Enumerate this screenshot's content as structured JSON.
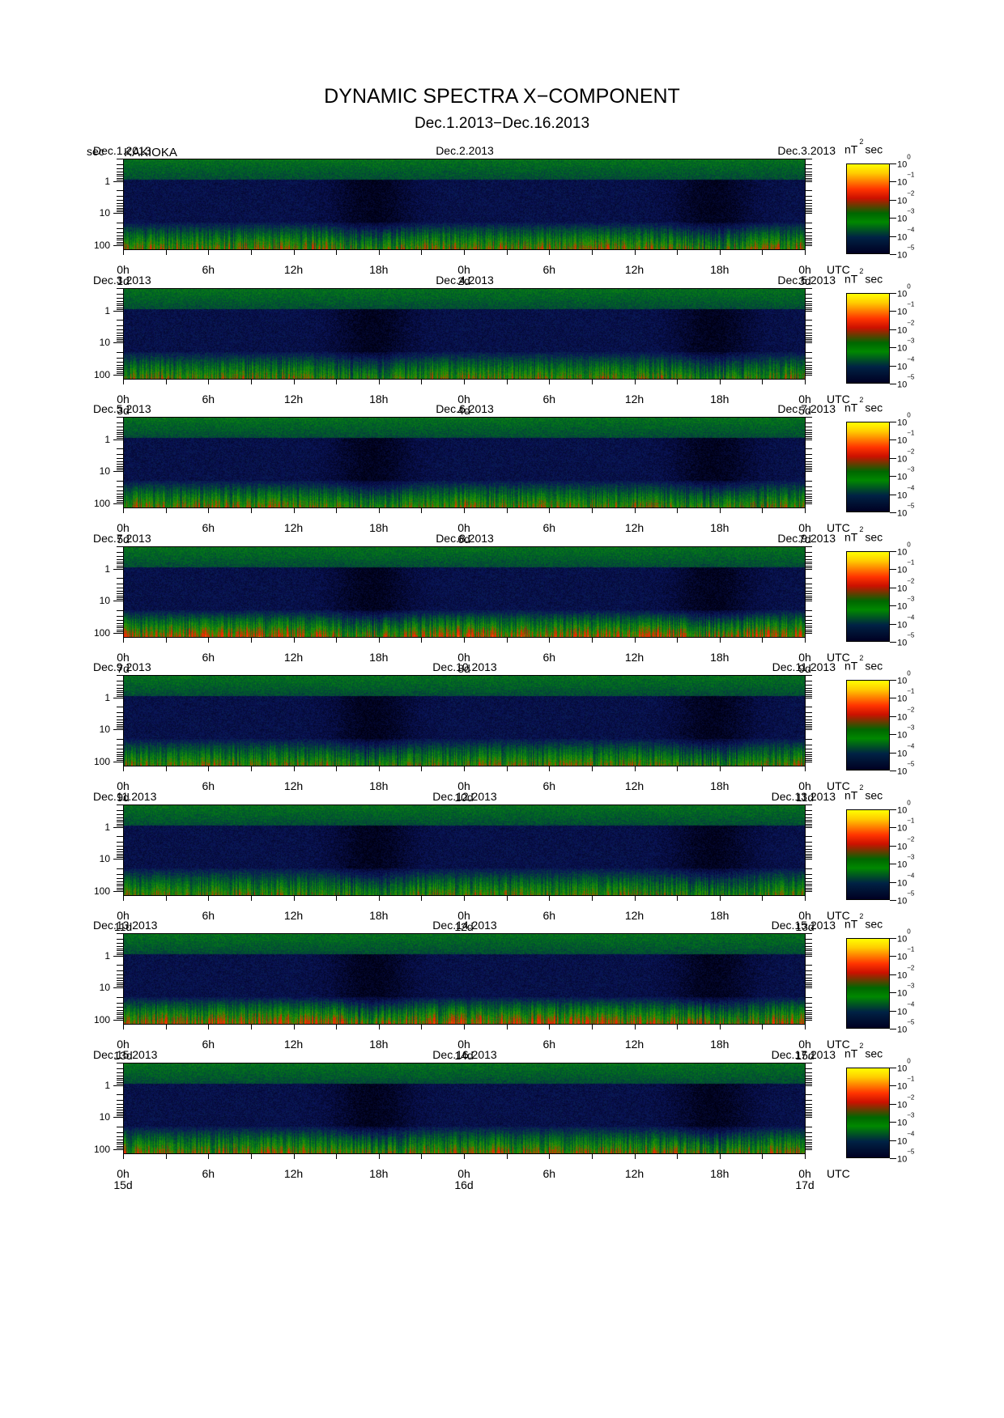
{
  "title": "DYNAMIC SPECTRA X−COMPONENT",
  "subtitle": "Dec.1.2013−Dec.16.2013",
  "y_unit": "sec",
  "station": "KAKIOKA",
  "scale_unit_prefix": "nT",
  "scale_unit_exp": "2",
  "scale_unit_suffix": "sec",
  "utc_label": "UTC",
  "colors": {
    "high": "#ffff00",
    "mid": "#ff2200",
    "low": "#008800",
    "floor": "#000022"
  },
  "chart_data": {
    "type": "heatmap",
    "xlabel": "UTC",
    "ylabel": "sec",
    "y_scale": "log",
    "y_ticks": [
      "1",
      "10",
      "100"
    ],
    "x_ticks": [
      "0h",
      "6h",
      "12h",
      "18h",
      "0h",
      "6h",
      "12h",
      "18h",
      "0h"
    ],
    "colorbar": {
      "label": "nT²sec",
      "scale": "log",
      "ticks": [
        "10^0",
        "10^-1",
        "10^-2",
        "10^-3",
        "10^-4",
        "10^-5"
      ]
    },
    "panels": [
      {
        "start_date": "Dec.1.2013",
        "mid_date": "Dec.2.2013",
        "end_date": "Dec.3.2013",
        "days": [
          "1d",
          "2d",
          "3d"
        ],
        "activity": 0.45
      },
      {
        "start_date": "Dec.3.2013",
        "mid_date": "Dec.4.2013",
        "end_date": "Dec.5.2013",
        "days": [
          "3d",
          "4d",
          "5d"
        ],
        "activity": 0.35
      },
      {
        "start_date": "Dec.5.2013",
        "mid_date": "Dec.6.2013",
        "end_date": "Dec.7.2013",
        "days": [
          "5d",
          "6d",
          "7d"
        ],
        "activity": 0.4
      },
      {
        "start_date": "Dec.7.2013",
        "mid_date": "Dec.8.2013",
        "end_date": "Dec.9.2013",
        "days": [
          "7d",
          "8d",
          "9d"
        ],
        "activity": 0.7
      },
      {
        "start_date": "Dec.9.2013",
        "mid_date": "Dec.10.2013",
        "end_date": "Dec.11.2013",
        "days": [
          "9d",
          "10d",
          "11d"
        ],
        "activity": 0.35
      },
      {
        "start_date": "Dec.11.2013",
        "mid_date": "Dec.12.2013",
        "end_date": "Dec.13.2013",
        "days": [
          "11d",
          "12d",
          "13d"
        ],
        "activity": 0.3
      },
      {
        "start_date": "Dec.13.2013",
        "mid_date": "Dec.14.2013",
        "end_date": "Dec.15.2013",
        "days": [
          "13d",
          "14d",
          "15d"
        ],
        "activity": 0.65
      },
      {
        "start_date": "Dec.15.2013",
        "mid_date": "Dec.16.2013",
        "end_date": "Dec.17.2013",
        "days": [
          "15d",
          "16d",
          "17d"
        ],
        "activity": 0.45
      }
    ]
  }
}
